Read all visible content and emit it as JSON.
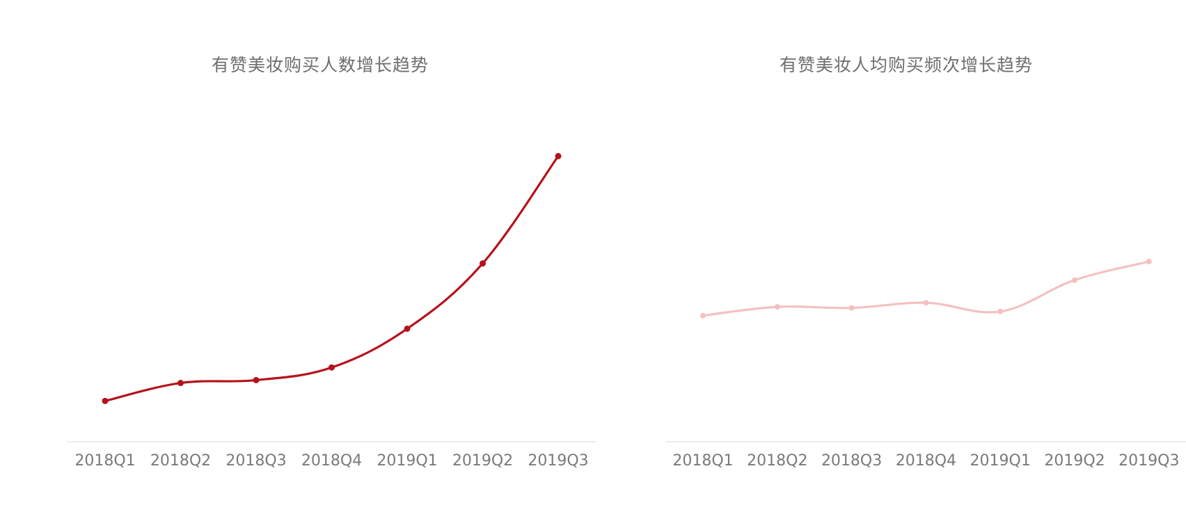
{
  "chart_data": [
    {
      "type": "line",
      "title": "有赞美妆购买人数增长趋势",
      "categories": [
        "2018Q1",
        "2018Q2",
        "2018Q3",
        "2018Q4",
        "2019Q1",
        "2019Q2",
        "2019Q3"
      ],
      "series": [
        {
          "values": [
            1.0,
            1.44,
            1.51,
            1.82,
            2.77,
            4.37,
            7.0
          ]
        }
      ],
      "ylim": [
        0,
        8.2
      ],
      "color": "#b5121b",
      "grid": false,
      "xlabel": "",
      "ylabel": ""
    },
    {
      "type": "line",
      "title": "有赞美妆人均购买频次增长趋势",
      "categories": [
        "2018Q1",
        "2018Q2",
        "2018Q3",
        "2018Q4",
        "2019Q1",
        "2019Q2",
        "2019Q3"
      ],
      "series": [
        {
          "values": [
            2.45,
            2.62,
            2.6,
            2.7,
            2.53,
            3.14,
            3.5
          ]
        }
      ],
      "ylim": [
        0,
        6.5
      ],
      "color": "#f5c0c0",
      "grid": false,
      "xlabel": "",
      "ylabel": ""
    }
  ]
}
